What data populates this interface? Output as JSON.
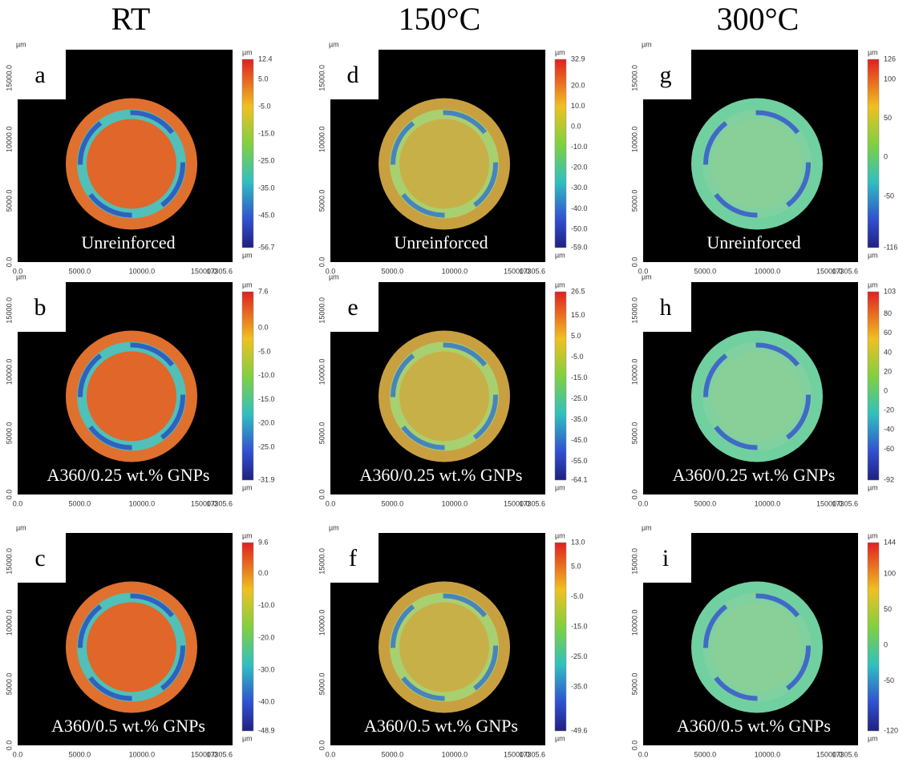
{
  "column_headers": [
    "RT",
    "150°C",
    "300°C"
  ],
  "axes": {
    "unit": "µm",
    "x_ticks": [
      "0.0",
      "5000.0",
      "10000.0",
      "15000.0",
      "17305.6"
    ],
    "y_ticks": [
      "0.0",
      "5000.0",
      "10000.0",
      "15000.0"
    ]
  },
  "panels": [
    {
      "letter": "a",
      "label": "Unreinforced",
      "colorbar_unit": "µm",
      "colorbar_ticks": [
        "12.4",
        "5.0",
        "-5.0",
        "-15.0",
        "-25.0",
        "-35.0",
        "-45.0",
        "-56.7"
      ]
    },
    {
      "letter": "b",
      "label": "A360/0.25 wt.% GNPs",
      "colorbar_unit": "µm",
      "colorbar_ticks": [
        "7.6",
        "0.0",
        "-5.0",
        "-10.0",
        "-15.0",
        "-20.0",
        "-25.0",
        "-31.9"
      ]
    },
    {
      "letter": "c",
      "label": "A360/0.5 wt.% GNPs",
      "colorbar_unit": "µm",
      "colorbar_ticks": [
        "9.6",
        "0.0",
        "-10.0",
        "-20.0",
        "-30.0",
        "-40.0",
        "-48.9"
      ]
    },
    {
      "letter": "d",
      "label": "Unreinforced",
      "colorbar_unit": "µm",
      "colorbar_ticks": [
        "32.9",
        "20.0",
        "10.0",
        "0.0",
        "-10.0",
        "-20.0",
        "-30.0",
        "-40.0",
        "-50.0",
        "-59.0"
      ]
    },
    {
      "letter": "e",
      "label": "A360/0.25 wt.% GNPs",
      "colorbar_unit": "µm",
      "colorbar_ticks": [
        "26.5",
        "15.0",
        "5.0",
        "-5.0",
        "-15.0",
        "-25.0",
        "-35.0",
        "-45.0",
        "-55.0",
        "-64.1"
      ]
    },
    {
      "letter": "f",
      "label": "A360/0.5 wt.% GNPs",
      "colorbar_unit": "µm",
      "colorbar_ticks": [
        "13.0",
        "5.0",
        "-5.0",
        "-15.0",
        "-25.0",
        "-35.0",
        "-49.6"
      ]
    },
    {
      "letter": "g",
      "label": "Unreinforced",
      "colorbar_unit": "µm",
      "colorbar_ticks": [
        "126",
        "100",
        "50",
        "0",
        "-50",
        "-116"
      ]
    },
    {
      "letter": "h",
      "label": "A360/0.25 wt.% GNPs",
      "colorbar_unit": "µm",
      "colorbar_ticks": [
        "103",
        "80",
        "60",
        "40",
        "20",
        "0",
        "-20",
        "-40",
        "-60",
        "-92"
      ]
    },
    {
      "letter": "i",
      "label": "A360/0.5 wt.% GNPs",
      "colorbar_unit": "µm",
      "colorbar_ticks": [
        "144",
        "100",
        "50",
        "0",
        "-50",
        "-120"
      ]
    }
  ]
}
